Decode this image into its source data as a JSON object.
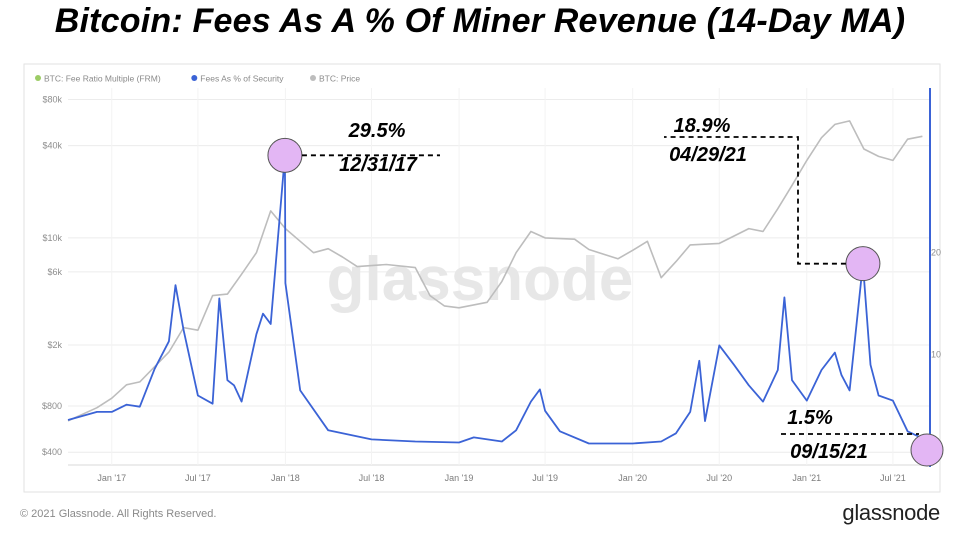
{
  "title": "Bitcoin: Fees As A % Of Miner Revenue (14-Day MA)",
  "footer": {
    "copyright": "© 2021 Glassnode. All Rights Reserved.",
    "logo": "glassnode"
  },
  "watermark": "glassnode",
  "colors": {
    "fees": "#3b63d6",
    "price": "#bdbdbd",
    "frm": "#9ccc65",
    "highlight": "#e3b6f4",
    "grid": "#ececec"
  },
  "chart_data": {
    "type": "line",
    "legend": [
      {
        "name": "BTC: Fee Ratio Multiple (FRM)",
        "color": "#9ccc65"
      },
      {
        "name": "Fees As % of Security",
        "color": "#3b63d6"
      },
      {
        "name": "BTC: Price",
        "color": "#bdbdbd"
      }
    ],
    "x_ticks": [
      "Jan '17",
      "Jul '17",
      "Jan '18",
      "Jul '18",
      "Jan '19",
      "Jul '19",
      "Jan '20",
      "Jul '20",
      "Jan '21",
      "Jul '21"
    ],
    "y_left_ticks": [
      "$80k",
      "$40k",
      "$10k",
      "$6k",
      "$2k",
      "$800",
      "$400"
    ],
    "y_right_ticks": [
      "20",
      "10"
    ],
    "price_series": {
      "name": "BTC: Price",
      "x": [
        "2016-10",
        "2016-12",
        "2017-01",
        "2017-02",
        "2017-03",
        "2017-05",
        "2017-06",
        "2017-07",
        "2017-08",
        "2017-09",
        "2017-10",
        "2017-11",
        "2017-12",
        "2018-01",
        "2018-02",
        "2018-03",
        "2018-04",
        "2018-05",
        "2018-06",
        "2018-08",
        "2018-10",
        "2018-11",
        "2018-12",
        "2019-01",
        "2019-03",
        "2019-04",
        "2019-05",
        "2019-06",
        "2019-07",
        "2019-09",
        "2019-10",
        "2019-12",
        "2020-01",
        "2020-02",
        "2020-03",
        "2020-04",
        "2020-05",
        "2020-07",
        "2020-09",
        "2020-10",
        "2020-11",
        "2020-12",
        "2021-01",
        "2021-02",
        "2021-03",
        "2021-04",
        "2021-05",
        "2021-06",
        "2021-07",
        "2021-08",
        "2021-09"
      ],
      "y": [
        640,
        780,
        900,
        1100,
        1150,
        1800,
        2600,
        2500,
        4200,
        4300,
        5800,
        8000,
        15000,
        11500,
        9500,
        8000,
        8500,
        7500,
        6500,
        6700,
        6400,
        4200,
        3600,
        3500,
        3800,
        5200,
        8000,
        11000,
        10000,
        9800,
        8400,
        7300,
        8300,
        9500,
        5500,
        7000,
        9000,
        9200,
        11500,
        11000,
        15500,
        22000,
        32000,
        45000,
        55000,
        58000,
        38000,
        34000,
        32000,
        44000,
        46000
      ]
    },
    "fees_series": {
      "name": "Fees As % of Security",
      "unit": "%",
      "x": [
        "2016-10",
        "2016-12",
        "2017-01",
        "2017-02",
        "2017-03",
        "2017-04",
        "2017-05",
        "2017-05-15",
        "2017-06",
        "2017-07",
        "2017-08",
        "2017-08-15",
        "2017-09",
        "2017-09-15",
        "2017-10",
        "2017-11",
        "2017-11-15",
        "2017-12",
        "2017-12-31",
        "2018-01",
        "2018-02",
        "2018-04",
        "2018-07",
        "2018-10",
        "2019-01",
        "2019-02",
        "2019-04",
        "2019-05",
        "2019-06",
        "2019-06-20",
        "2019-07",
        "2019-08",
        "2019-10",
        "2020-01",
        "2020-03",
        "2020-04",
        "2020-05",
        "2020-05-20",
        "2020-06",
        "2020-07",
        "2020-08",
        "2020-09",
        "2020-10",
        "2020-11",
        "2020-11-15",
        "2020-12",
        "2021-01",
        "2021-02",
        "2021-03",
        "2021-03-15",
        "2021-04",
        "2021-04-29",
        "2021-05-15",
        "2021-06",
        "2021-07",
        "2021-08",
        "2021-09-15"
      ],
      "y": [
        3.6,
        4.4,
        4.4,
        5.1,
        4.9,
        8.6,
        11.3,
        16.8,
        12.4,
        6.0,
        5.2,
        15.5,
        7.5,
        7.0,
        5.4,
        12.0,
        14.0,
        13.0,
        29.5,
        17.0,
        6.5,
        2.6,
        1.7,
        1.5,
        1.4,
        1.9,
        1.5,
        2.6,
        5.4,
        6.6,
        4.5,
        2.5,
        1.3,
        1.3,
        1.5,
        2.3,
        4.4,
        9.4,
        3.5,
        10.9,
        9.0,
        7.0,
        5.4,
        8.5,
        15.6,
        7.5,
        5.5,
        8.5,
        10.2,
        8.0,
        6.5,
        18.9,
        9.0,
        6.0,
        5.5,
        2.5,
        1.5
      ]
    },
    "annotations": [
      {
        "value": "29.5%",
        "date": "12/31/17"
      },
      {
        "value": "18.9%",
        "date": "04/29/21"
      },
      {
        "value": "1.5%",
        "date": "09/15/21"
      }
    ],
    "grid": true,
    "legend_position": "top-left"
  }
}
